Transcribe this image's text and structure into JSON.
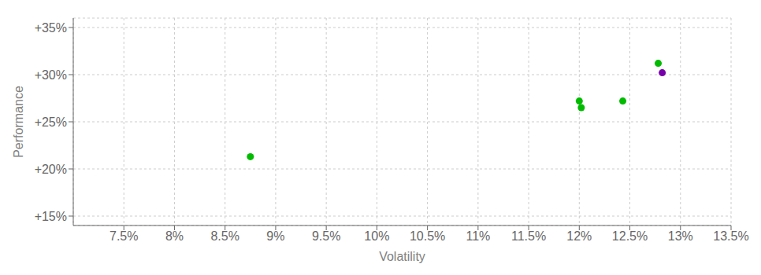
{
  "chart_data": {
    "type": "scatter",
    "xlabel": "Volatility",
    "ylabel": "Performance",
    "x": [
      0.0875,
      0.12,
      0.1202,
      0.1243,
      0.1278,
      0.1282
    ],
    "values": [
      0.213,
      0.272,
      0.265,
      0.272,
      0.312,
      0.302
    ],
    "colors": [
      "#00bb00",
      "#00bb00",
      "#00bb00",
      "#00bb00",
      "#00bb00",
      "#7700aa"
    ],
    "xlim": [
      0.07,
      0.135
    ],
    "ylim": [
      0.14,
      0.36
    ],
    "xticks": [
      {
        "value": 0.075,
        "label": "7.5%"
      },
      {
        "value": 0.08,
        "label": "8%"
      },
      {
        "value": 0.085,
        "label": "8.5%"
      },
      {
        "value": 0.09,
        "label": "9%"
      },
      {
        "value": 0.095,
        "label": "9.5%"
      },
      {
        "value": 0.1,
        "label": "10%"
      },
      {
        "value": 0.105,
        "label": "10.5%"
      },
      {
        "value": 0.11,
        "label": "11%"
      },
      {
        "value": 0.115,
        "label": "11.5%"
      },
      {
        "value": 0.12,
        "label": "12%"
      },
      {
        "value": 0.125,
        "label": "12.5%"
      },
      {
        "value": 0.13,
        "label": "13%"
      },
      {
        "value": 0.135,
        "label": "13.5%"
      }
    ],
    "yticks": [
      {
        "value": 0.15,
        "label": "+15%"
      },
      {
        "value": 0.2,
        "label": "+20%"
      },
      {
        "value": 0.25,
        "label": "+25%"
      },
      {
        "value": 0.3,
        "label": "+30%"
      },
      {
        "value": 0.35,
        "label": "+35%"
      }
    ],
    "grid": true
  }
}
